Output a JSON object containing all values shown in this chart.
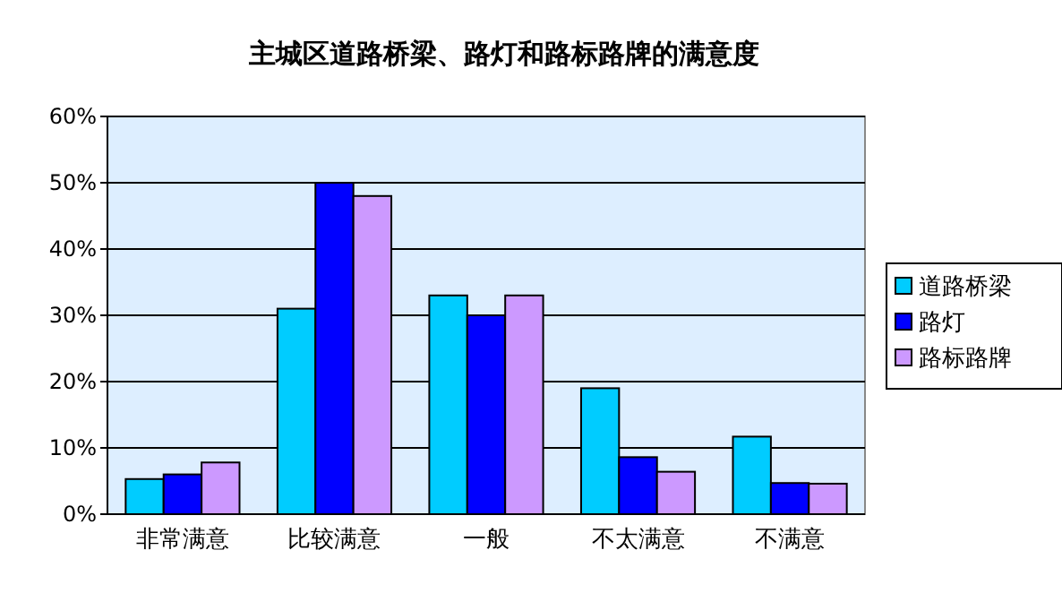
{
  "chart_data": {
    "type": "bar",
    "title": "主城区道路桥梁、路灯和路标路牌的满意度",
    "categories": [
      "非常满意",
      "比较满意",
      "一般",
      "不太满意",
      "不满意"
    ],
    "series": [
      {
        "name": "道路桥梁",
        "color": "#00ccff",
        "values": [
          5.3,
          31,
          33,
          19,
          11.7
        ]
      },
      {
        "name": "路灯",
        "color": "#0000ff",
        "values": [
          6,
          50,
          30,
          8.6,
          4.7
        ]
      },
      {
        "name": "路标路牌",
        "color": "#cc99ff",
        "values": [
          7.8,
          48,
          33,
          6.4,
          4.6
        ]
      }
    ],
    "ylim": [
      0,
      60
    ],
    "yticks": [
      {
        "value": 0,
        "label": "0%"
      },
      {
        "value": 10,
        "label": "10%"
      },
      {
        "value": 20,
        "label": "20%"
      },
      {
        "value": 30,
        "label": "30%"
      },
      {
        "value": 40,
        "label": "40%"
      },
      {
        "value": 50,
        "label": "50%"
      },
      {
        "value": 60,
        "label": "60%"
      }
    ],
    "grid": "y",
    "legend": "right"
  }
}
